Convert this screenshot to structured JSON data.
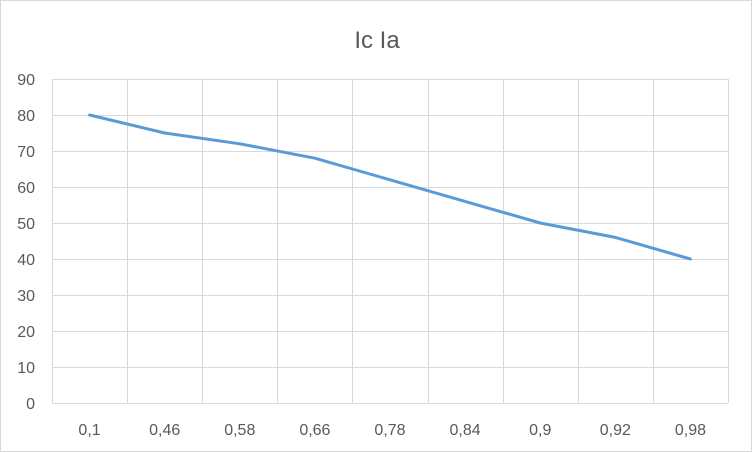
{
  "chart_data": {
    "type": "line",
    "title": "Ic Ia",
    "categories": [
      "0,1",
      "0,46",
      "0,58",
      "0,66",
      "0,78",
      "0,84",
      "0,9",
      "0,92",
      "0,98"
    ],
    "series": [
      {
        "values": [
          80,
          75,
          72,
          68,
          62,
          56,
          50,
          46,
          40
        ],
        "color": "#5b9bd5"
      }
    ],
    "xlabel": "",
    "ylabel": "",
    "ylim": [
      0,
      90
    ],
    "yticks": [
      0,
      10,
      20,
      30,
      40,
      50,
      60,
      70,
      80,
      90
    ],
    "grid": true,
    "legend": "none"
  }
}
